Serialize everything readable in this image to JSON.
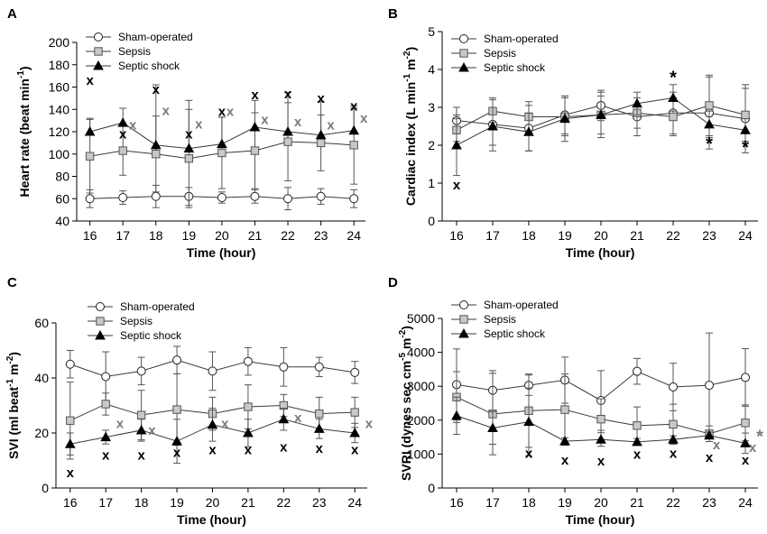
{
  "chart_data": [
    {
      "type": "line",
      "panel_label": "A",
      "xlabel": "Time (hour)",
      "ylabel_main": "Heart rate (beat min",
      "ylabel_sup": "-1",
      "ylabel_end": ")",
      "x": [
        16,
        17,
        18,
        19,
        20,
        21,
        22,
        23,
        24
      ],
      "x_ticks": [
        "16",
        "17",
        "18",
        "19",
        "20",
        "21",
        "22",
        "23",
        "24"
      ],
      "ylim": [
        40,
        200
      ],
      "y_ticks": [
        "40",
        "60",
        "80",
        "100",
        "120",
        "140",
        "160",
        "180",
        "200"
      ],
      "legend_position": "top-left",
      "series": [
        {
          "name": "Sham-operated",
          "marker": "circle",
          "values": [
            60,
            61,
            62,
            62,
            61,
            62,
            60,
            62,
            60
          ],
          "errors": [
            8,
            6,
            10,
            8,
            5,
            6,
            10,
            7,
            8
          ],
          "err_dir": "both"
        },
        {
          "name": "Sepsis",
          "marker": "square",
          "values": [
            98,
            103,
            100,
            96,
            101,
            103,
            111,
            110,
            108
          ],
          "errors": [
            33,
            22,
            34,
            44,
            32,
            34,
            35,
            25,
            35
          ],
          "err_dir": "both"
        },
        {
          "name": "Septic shock",
          "marker": "triangle",
          "values": [
            120,
            128,
            108,
            105,
            109,
            124,
            120,
            117,
            121
          ],
          "errors": [
            12,
            13,
            54,
            43,
            24,
            24,
            35,
            30,
            20
          ],
          "err_dir": "up"
        }
      ],
      "annotations": [
        {
          "text": "x",
          "x": 16,
          "y": 166,
          "color": "black"
        },
        {
          "text": "x",
          "x": 17,
          "y": 118,
          "color": "black"
        },
        {
          "text": "x",
          "x": 17.3,
          "y": 126,
          "color": "gray"
        },
        {
          "text": "x",
          "x": 18,
          "y": 158,
          "color": "black"
        },
        {
          "text": "x",
          "x": 18.3,
          "y": 139,
          "color": "gray"
        },
        {
          "text": "x",
          "x": 19,
          "y": 118,
          "color": "black"
        },
        {
          "text": "x",
          "x": 19.3,
          "y": 127,
          "color": "gray"
        },
        {
          "text": "x",
          "x": 20,
          "y": 138,
          "color": "black"
        },
        {
          "text": "x",
          "x": 20.25,
          "y": 138,
          "color": "gray"
        },
        {
          "text": "x",
          "x": 21,
          "y": 153,
          "color": "black"
        },
        {
          "text": "x",
          "x": 21.3,
          "y": 131,
          "color": "gray"
        },
        {
          "text": "x",
          "x": 22,
          "y": 154,
          "color": "black"
        },
        {
          "text": "x",
          "x": 22.3,
          "y": 129,
          "color": "gray"
        },
        {
          "text": "x",
          "x": 23,
          "y": 150,
          "color": "black"
        },
        {
          "text": "x",
          "x": 23.3,
          "y": 126,
          "color": "gray"
        },
        {
          "text": "x",
          "x": 24,
          "y": 143,
          "color": "black"
        },
        {
          "text": "x",
          "x": 24.3,
          "y": 132,
          "color": "gray"
        }
      ]
    },
    {
      "type": "line",
      "panel_label": "B",
      "xlabel": "Time (hour)",
      "ylabel_main": "Cardiac index (L min",
      "ylabel_sup": "-1",
      "ylabel_mid": " m",
      "ylabel_sup2": "-2",
      "ylabel_end": ")",
      "x": [
        16,
        17,
        18,
        19,
        20,
        21,
        22,
        23,
        24
      ],
      "x_ticks": [
        "16",
        "17",
        "18",
        "19",
        "20",
        "21",
        "22",
        "23",
        "24"
      ],
      "ylim": [
        0,
        5
      ],
      "y_ticks": [
        "0",
        "1",
        "2",
        "3",
        "4",
        "5"
      ],
      "legend_position": "top-left",
      "series": [
        {
          "name": "Sham-operated",
          "marker": "circle",
          "values": [
            2.65,
            2.55,
            2.45,
            2.8,
            3.05,
            2.75,
            2.85,
            2.85,
            2.7
          ],
          "errors": [
            0.35,
            0.7,
            0.6,
            0.5,
            0.4,
            0.5,
            0.55,
            0.95,
            0.9
          ],
          "err_dir": "both"
        },
        {
          "name": "Sepsis",
          "marker": "square",
          "values": [
            2.4,
            2.9,
            2.75,
            2.75,
            2.8,
            2.85,
            2.75,
            3.05,
            2.8
          ],
          "errors": [
            0.3,
            0.3,
            0.4,
            0.5,
            0.5,
            0.4,
            0.5,
            0.8,
            0.7
          ],
          "err_dir": "both"
        },
        {
          "name": "Septic shock",
          "marker": "triangle",
          "values": [
            2.0,
            2.5,
            2.35,
            2.7,
            2.8,
            3.1,
            3.25,
            2.55,
            2.4
          ],
          "errors": [
            0.8,
            0.5,
            0.5,
            0.6,
            0.6,
            0.3,
            0.35,
            0.35,
            0.3
          ],
          "err_dir": "both"
        }
      ],
      "annotations": [
        {
          "text": "x",
          "x": 16,
          "y": 0.95,
          "color": "black"
        },
        {
          "text": "*",
          "x": 22,
          "y": 3.75,
          "color": "black"
        },
        {
          "text": "*",
          "x": 23,
          "y": 2.0,
          "color": "black"
        },
        {
          "text": "*",
          "x": 24,
          "y": 1.9,
          "color": "black"
        }
      ]
    },
    {
      "type": "line",
      "panel_label": "C",
      "xlabel": "Time (hour)",
      "ylabel_main": "SVI (ml beat",
      "ylabel_sup": "-1",
      "ylabel_mid": " m",
      "ylabel_sup2": "-2",
      "ylabel_end": ")",
      "x": [
        16,
        17,
        18,
        19,
        20,
        21,
        22,
        23,
        24
      ],
      "x_ticks": [
        "16",
        "17",
        "18",
        "19",
        "20",
        "21",
        "22",
        "23",
        "24"
      ],
      "ylim": [
        0,
        60
      ],
      "y_ticks": [
        "0",
        "20",
        "40",
        "60"
      ],
      "legend_position": "top-left",
      "series": [
        {
          "name": "Sham-operated",
          "marker": "circle",
          "values": [
            45,
            40.5,
            42.5,
            46.5,
            42.5,
            46,
            44,
            44,
            42
          ],
          "errors": [
            5,
            9,
            5,
            5,
            7,
            5,
            7,
            3.5,
            4
          ],
          "err_dir": "both"
        },
        {
          "name": "Sepsis",
          "marker": "square",
          "values": [
            24.5,
            30.5,
            26.5,
            28.5,
            27,
            29.5,
            30,
            27,
            27.5
          ],
          "errors": [
            14,
            4,
            9,
            13,
            6,
            8,
            4,
            6,
            5.5
          ],
          "err_dir": "both"
        },
        {
          "name": "Septic shock",
          "marker": "triangle",
          "values": [
            16,
            18.5,
            21,
            17,
            23,
            20,
            25,
            21.5,
            20
          ],
          "errors": [
            4,
            2.5,
            4,
            8,
            6,
            5,
            4,
            3.5,
            3.5
          ],
          "err_dir": "both"
        }
      ],
      "annotations": [
        {
          "text": "x",
          "x": 16,
          "y": 5.5,
          "color": "black"
        },
        {
          "text": "x",
          "x": 17,
          "y": 12,
          "color": "black"
        },
        {
          "text": "x",
          "x": 17.4,
          "y": 23.5,
          "color": "gray"
        },
        {
          "text": "x",
          "x": 18,
          "y": 12,
          "color": "black"
        },
        {
          "text": "x",
          "x": 18.3,
          "y": 21,
          "color": "gray"
        },
        {
          "text": "x",
          "x": 19,
          "y": 13,
          "color": "black"
        },
        {
          "text": "x",
          "x": 20,
          "y": 14,
          "color": "black"
        },
        {
          "text": "x",
          "x": 20.35,
          "y": 23.5,
          "color": "gray"
        },
        {
          "text": "x",
          "x": 21,
          "y": 14,
          "color": "black"
        },
        {
          "text": "x",
          "x": 22,
          "y": 15,
          "color": "black"
        },
        {
          "text": "x",
          "x": 22.4,
          "y": 25.5,
          "color": "gray"
        },
        {
          "text": "x",
          "x": 23,
          "y": 14.5,
          "color": "black"
        },
        {
          "text": "x",
          "x": 24,
          "y": 14,
          "color": "black"
        },
        {
          "text": "x",
          "x": 24.4,
          "y": 23.5,
          "color": "gray"
        }
      ]
    },
    {
      "type": "line",
      "panel_label": "D",
      "xlabel": "Time (hour)",
      "ylabel_main": "SVRI (dynes sec cm",
      "ylabel_sup": "-5",
      "ylabel_mid": " m",
      "ylabel_sup2": "-2",
      "ylabel_end": ")",
      "x": [
        16,
        17,
        18,
        19,
        20,
        21,
        22,
        23,
        24
      ],
      "x_ticks": [
        "16",
        "17",
        "18",
        "19",
        "20",
        "21",
        "22",
        "23",
        "24"
      ],
      "ylim": [
        0,
        5000
      ],
      "y_ticks": [
        "0",
        "1000",
        "2000",
        "3000",
        "4000",
        "5000"
      ],
      "legend_position": "top-left",
      "series": [
        {
          "name": "Sham-operated",
          "marker": "circle",
          "values": [
            3050,
            2880,
            3030,
            3180,
            2580,
            3440,
            2980,
            3030,
            3260
          ],
          "errors": [
            1050,
            580,
            300,
            680,
            880,
            380,
            700,
            1540,
            850
          ],
          "err_dir": "both"
        },
        {
          "name": "Sepsis",
          "marker": "square",
          "values": [
            2680,
            2180,
            2280,
            2310,
            2030,
            1840,
            1880,
            1600,
            1920
          ],
          "errors": [
            750,
            1200,
            1080,
            1050,
            600,
            550,
            590,
            230,
            530
          ],
          "err_dir": "both"
        },
        {
          "name": "Septic shock",
          "marker": "triangle",
          "values": [
            2130,
            1770,
            1950,
            1380,
            1430,
            1360,
            1430,
            1550,
            1320
          ],
          "errors": [
            550,
            480,
            1000,
            100,
            200,
            100,
            110,
            100,
            300
          ],
          "err_dir": "both"
        }
      ],
      "annotations": [
        {
          "text": "x",
          "x": 18,
          "y": 1030,
          "color": "black"
        },
        {
          "text": "x",
          "x": 19,
          "y": 820,
          "color": "black"
        },
        {
          "text": "x",
          "x": 20,
          "y": 800,
          "color": "black"
        },
        {
          "text": "x",
          "x": 21,
          "y": 1000,
          "color": "black"
        },
        {
          "text": "x",
          "x": 22,
          "y": 1020,
          "color": "black"
        },
        {
          "text": "x",
          "x": 23,
          "y": 900,
          "color": "black"
        },
        {
          "text": "x",
          "x": 23.2,
          "y": 1280,
          "color": "gray"
        },
        {
          "text": "x",
          "x": 24,
          "y": 820,
          "color": "black"
        },
        {
          "text": "x",
          "x": 24.2,
          "y": 1200,
          "color": "gray"
        },
        {
          "text": "*",
          "x": 24.4,
          "y": 1480,
          "color": "gray"
        }
      ]
    }
  ],
  "colors": {
    "sham_fill": "#ffffff",
    "sepsis_fill": "#c8c8c8",
    "shock_fill": "#000000",
    "line": "#3a3a3a",
    "sepsis_mark_gray": "#7a7a7a"
  }
}
